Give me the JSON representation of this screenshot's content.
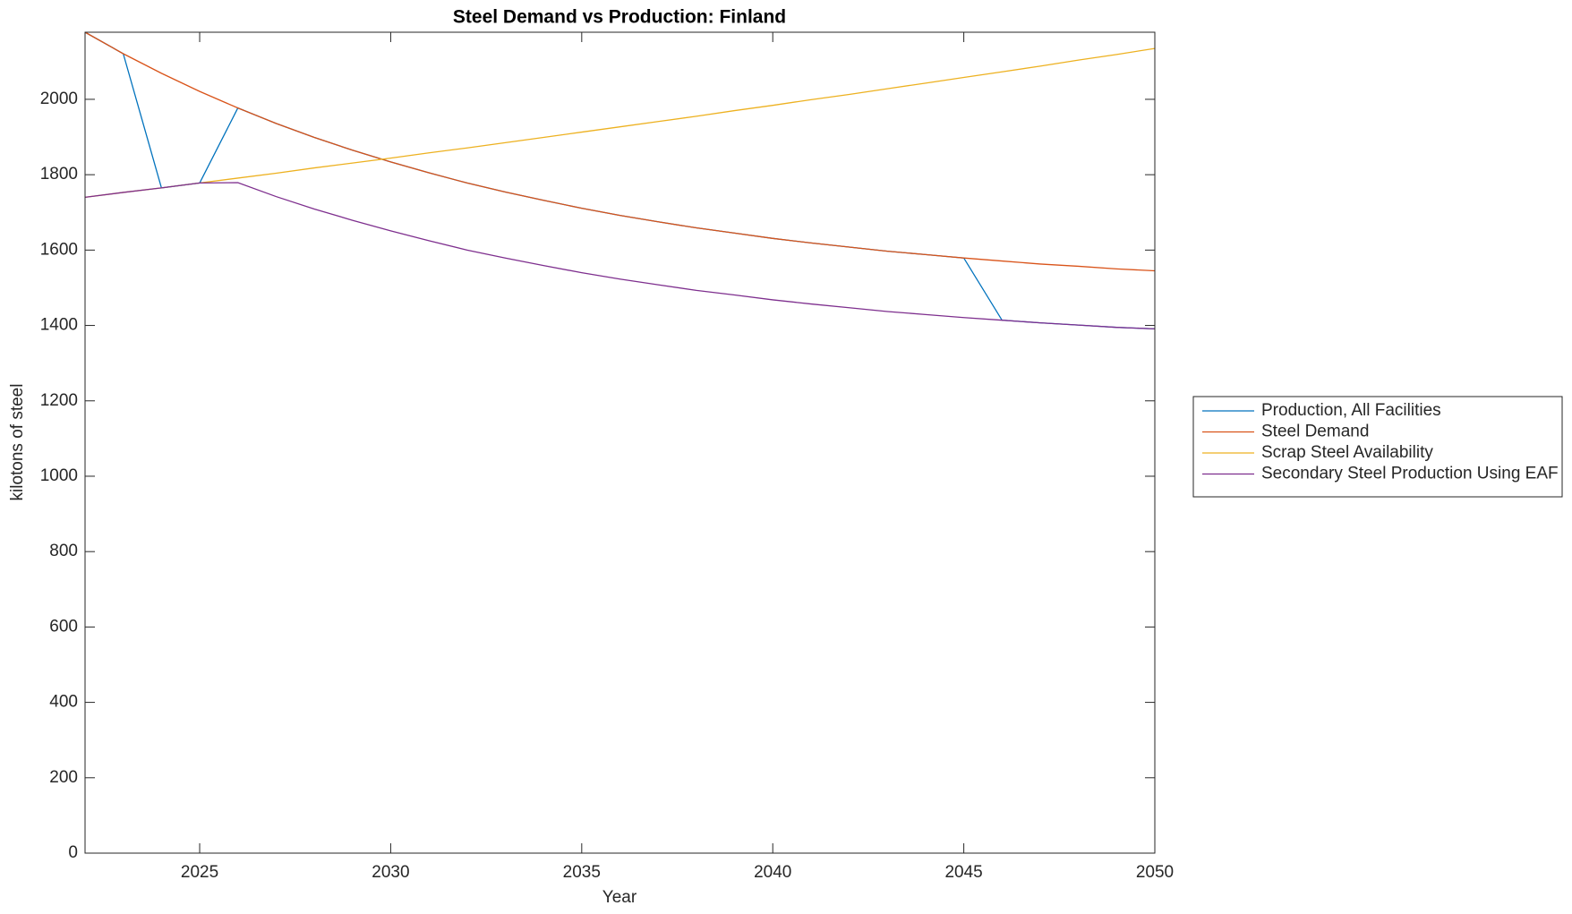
{
  "chart_data": {
    "type": "line",
    "title": "Steel Demand vs Production: Finland",
    "x_label": "Year",
    "y_label": "kilotons of steel",
    "x": [
      2022,
      2023,
      2024,
      2025,
      2026,
      2027,
      2028,
      2029,
      2030,
      2031,
      2032,
      2033,
      2034,
      2035,
      2036,
      2037,
      2038,
      2039,
      2040,
      2041,
      2042,
      2043,
      2044,
      2045,
      2046,
      2047,
      2048,
      2049,
      2050
    ],
    "series": [
      {
        "name": "Production, All Facilities",
        "color": "#0072BD",
        "values": [
          2178,
          2121,
          1765,
          1778,
          1977,
          1936,
          1899,
          1865,
          1834,
          1805,
          1778,
          1754,
          1732,
          1711,
          1692,
          1675,
          1659,
          1645,
          1631,
          1619,
          1608,
          1597,
          1588,
          1579,
          1414,
          1407,
          1401,
          1395,
          1391
        ]
      },
      {
        "name": "Steel Demand",
        "color": "#D95319",
        "values": [
          2178,
          2121,
          2069,
          2021,
          1977,
          1936,
          1899,
          1865,
          1834,
          1805,
          1778,
          1754,
          1732,
          1711,
          1692,
          1675,
          1659,
          1645,
          1631,
          1619,
          1608,
          1597,
          1588,
          1579,
          1571,
          1563,
          1557,
          1550,
          1545
        ]
      },
      {
        "name": "Scrap Steel Availability",
        "color": "#EDB120",
        "values": [
          1740,
          1753,
          1765,
          1778,
          1791,
          1804,
          1818,
          1831,
          1844,
          1858,
          1871,
          1885,
          1899,
          1913,
          1927,
          1941,
          1955,
          1970,
          1984,
          1999,
          2013,
          2028,
          2043,
          2058,
          2073,
          2088,
          2104,
          2119,
          2135
        ]
      },
      {
        "name": "Secondary Steel Production Using EAF",
        "color": "#7E2F8E",
        "values": [
          1740,
          1753,
          1765,
          1778,
          1779,
          1742,
          1709,
          1679,
          1651,
          1625,
          1600,
          1579,
          1559,
          1540,
          1523,
          1508,
          1493,
          1481,
          1468,
          1457,
          1447,
          1437,
          1429,
          1421,
          1414,
          1407,
          1401,
          1395,
          1391
        ]
      }
    ],
    "xlim": [
      2022,
      2050
    ],
    "xticks": [
      2025,
      2030,
      2035,
      2040,
      2045,
      2050
    ],
    "ylim": [
      0,
      2178
    ],
    "yticks": [
      0,
      200,
      400,
      600,
      800,
      1000,
      1200,
      1400,
      1600,
      1800,
      2000
    ],
    "grid": false,
    "legend_position": "outside-right"
  }
}
